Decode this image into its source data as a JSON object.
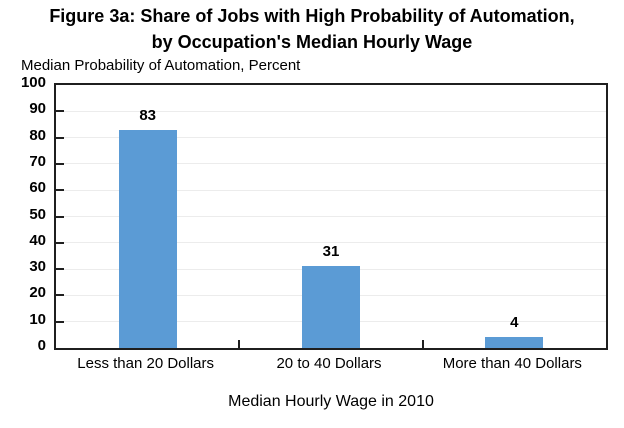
{
  "figure": {
    "title_line1": "Figure 3a: Share of Jobs with High Probability of Automation,",
    "title_line2": "by Occupation's Median Hourly Wage"
  },
  "chart_data": {
    "type": "bar",
    "title": "Figure 3a: Share of Jobs with High Probability of Automation, by Occupation's Median Hourly Wage",
    "y_axis_title": "Median Probability of Automation, Percent",
    "xlabel": "Median Hourly Wage in 2010",
    "ylabel": "Median Probability of Automation, Percent",
    "categories": [
      "Less than 20 Dollars",
      "20 to 40 Dollars",
      "More than 40 Dollars"
    ],
    "values": [
      83,
      31,
      4
    ],
    "data_labels": [
      "83",
      "31",
      "4"
    ],
    "ylim": [
      0,
      100
    ],
    "ytick_interval": 10,
    "ytick_labels": [
      "0",
      "10",
      "20",
      "30",
      "40",
      "50",
      "60",
      "70",
      "80",
      "90",
      "100"
    ],
    "grid": "horizontal-light",
    "legend_position": "none",
    "colors": {
      "bar": "#5B9BD5",
      "axis": "#1f1f1f",
      "gridline": "#ececec",
      "text": "#000000"
    }
  }
}
